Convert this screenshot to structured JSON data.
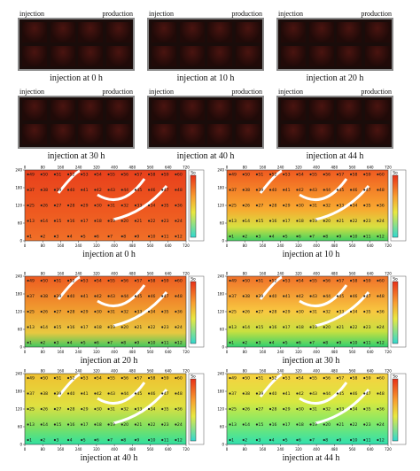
{
  "photos": [
    {
      "left_label": "injection",
      "right_label": "production",
      "caption": "injection at 0 h"
    },
    {
      "left_label": "injection",
      "right_label": "production",
      "caption": "injection at 10 h"
    },
    {
      "left_label": "injection",
      "right_label": "production",
      "caption": "injection at 20 h"
    },
    {
      "left_label": "injection",
      "right_label": "production",
      "caption": "injection at 30 h"
    },
    {
      "left_label": "injection",
      "right_label": "production",
      "caption": "injection at 40 h"
    },
    {
      "left_label": "injection",
      "right_label": "production",
      "caption": "injection at 44 h"
    }
  ],
  "maps": [
    {
      "caption": "injection at 0 h"
    },
    {
      "caption": "injection at 10 h"
    },
    {
      "caption": "injection at 20 h"
    },
    {
      "caption": "injection at 30 h"
    },
    {
      "caption": "injection at 40 h"
    },
    {
      "caption": "injection at 44 h"
    }
  ],
  "map_axes": {
    "xticks": [
      0,
      80,
      160,
      240,
      320,
      400,
      480,
      560,
      640,
      720
    ],
    "yticks": [
      0,
      60,
      120,
      180,
      240
    ],
    "legend_title": "So"
  },
  "wells": [
    [
      1,
      2,
      3,
      4,
      5,
      6,
      7,
      8,
      9,
      10,
      11,
      12
    ],
    [
      13,
      14,
      15,
      16,
      17,
      18,
      19,
      20,
      21,
      22,
      23,
      24
    ],
    [
      25,
      26,
      27,
      28,
      29,
      30,
      31,
      32,
      33,
      34,
      35,
      36
    ],
    [
      37,
      38,
      39,
      40,
      41,
      42,
      43,
      44,
      45,
      46,
      47,
      48
    ],
    [
      49,
      50,
      51,
      52,
      53,
      54,
      55,
      56,
      57,
      58,
      59,
      60
    ]
  ]
}
